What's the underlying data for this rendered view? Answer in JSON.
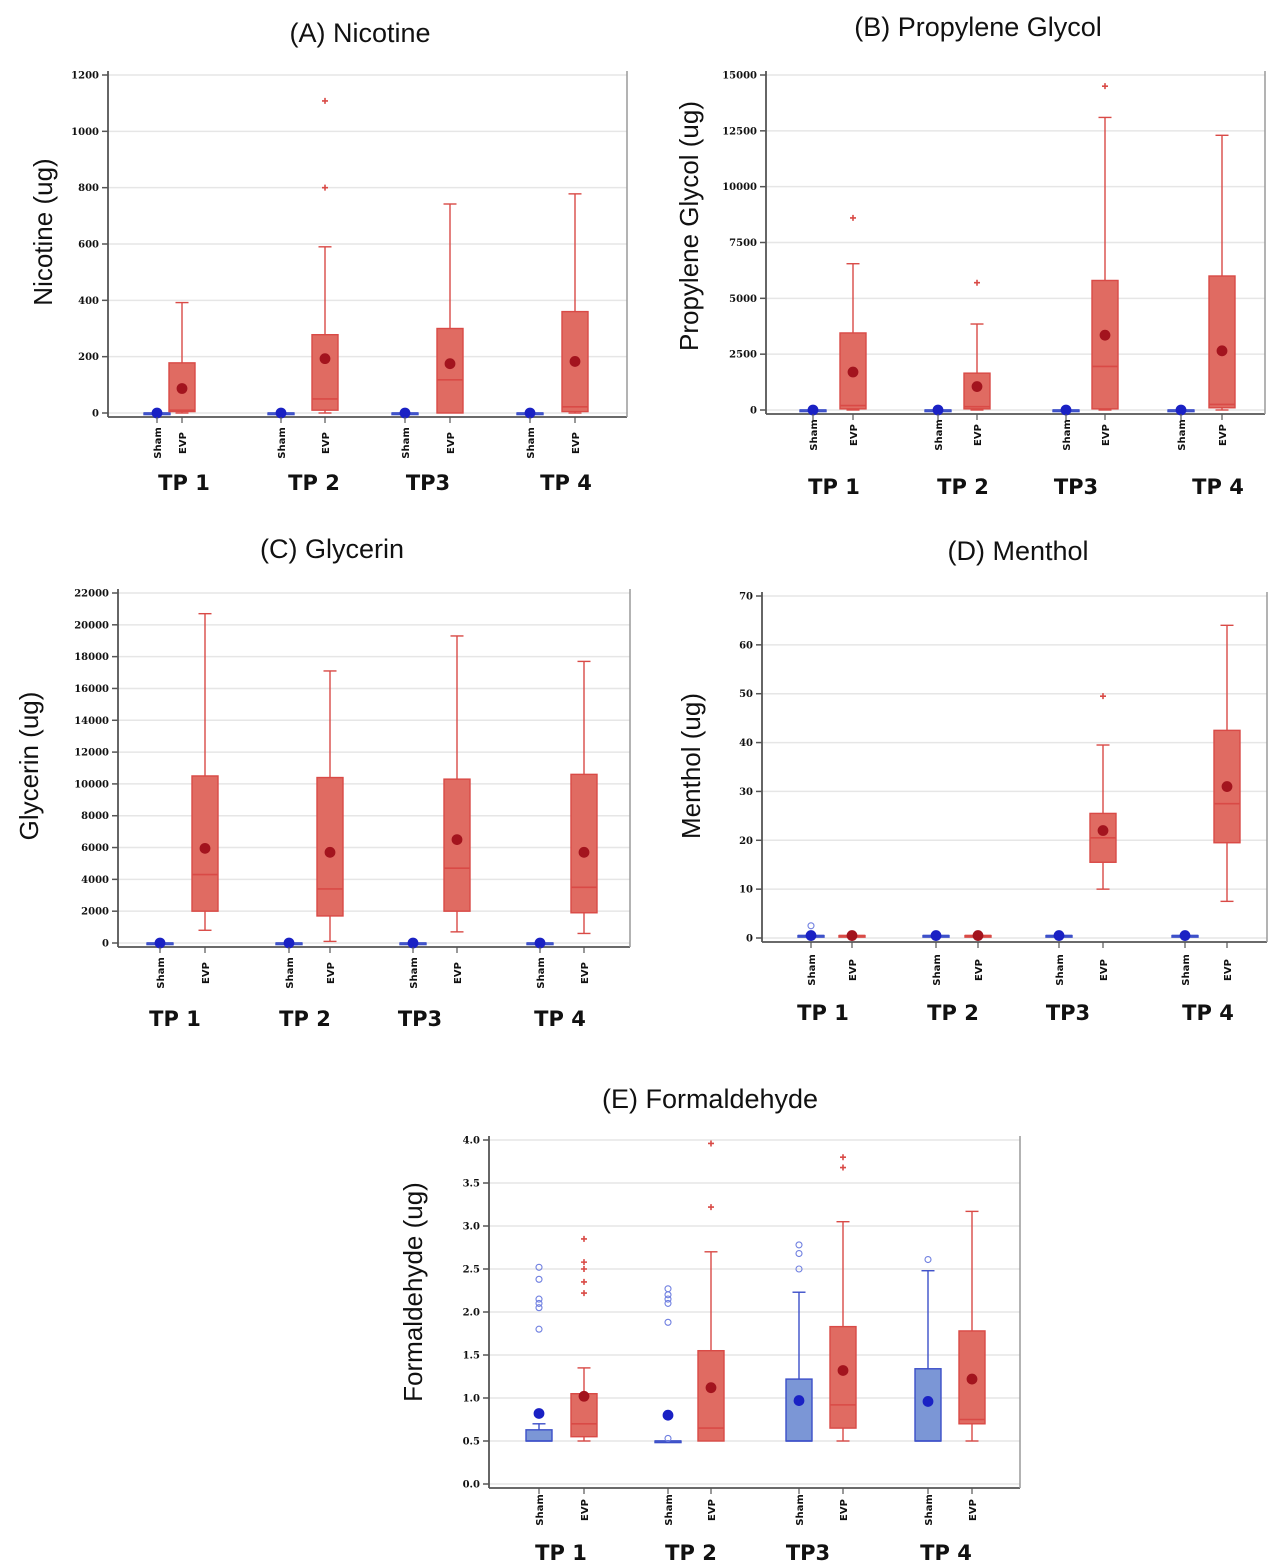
{
  "figure": {
    "panel_titles": [
      "(A) Nicotine",
      "(B) Propylene Glycol",
      "(C) Glycerin",
      "(D) Menthol",
      "(E) Formaldehyde"
    ]
  },
  "colors": {
    "sham_fill": "#7b96d6",
    "sham_line": "#3c4fc9",
    "sham_mean": "#1a21c4",
    "evp_fill": "#e06b62",
    "evp_line": "#d94a46",
    "evp_mean": "#a3141e",
    "axis": "#555555",
    "grid": "#e6e6e6"
  },
  "chart_data": [
    {
      "type": "boxplot",
      "title": "(A) Nicotine",
      "ylabel": "Nicotine (ug)",
      "ylim": [
        0,
        1200
      ],
      "yticks": [
        "0",
        "200",
        "400",
        "600",
        "800",
        "1000",
        "1200"
      ],
      "groups": [
        "TP 1",
        "TP 2",
        "TP3",
        "TP 4"
      ],
      "categories": [
        "Sham",
        "EVP"
      ],
      "grid": true,
      "boxes": [
        {
          "group": "TP 1",
          "cat": "Sham",
          "min": 0,
          "q1": 0,
          "median": 0,
          "q3": 0,
          "max": 0,
          "mean": 0,
          "outliers": []
        },
        {
          "group": "TP 1",
          "cat": "EVP",
          "min": 0,
          "q1": 5,
          "median": 10,
          "q3": 178,
          "max": 392,
          "mean": 87,
          "outliers": []
        },
        {
          "group": "TP 2",
          "cat": "Sham",
          "min": 0,
          "q1": 0,
          "median": 0,
          "q3": 0,
          "max": 0,
          "mean": 0,
          "outliers": []
        },
        {
          "group": "TP 2",
          "cat": "EVP",
          "min": 0,
          "q1": 10,
          "median": 50,
          "q3": 278,
          "max": 590,
          "mean": 193,
          "outliers": [
            800,
            1108
          ]
        },
        {
          "group": "TP3",
          "cat": "Sham",
          "min": 0,
          "q1": 0,
          "median": 0,
          "q3": 0,
          "max": 0,
          "mean": 0,
          "outliers": []
        },
        {
          "group": "TP3",
          "cat": "EVP",
          "min": 0,
          "q1": 0,
          "median": 118,
          "q3": 300,
          "max": 742,
          "mean": 175,
          "outliers": []
        },
        {
          "group": "TP 4",
          "cat": "Sham",
          "min": 0,
          "q1": 0,
          "median": 0,
          "q3": 0,
          "max": 0,
          "mean": 0,
          "outliers": []
        },
        {
          "group": "TP 4",
          "cat": "EVP",
          "min": 0,
          "q1": 5,
          "median": 22,
          "q3": 360,
          "max": 778,
          "mean": 183,
          "outliers": []
        }
      ]
    },
    {
      "type": "boxplot",
      "title": "(B) Propylene Glycol",
      "ylabel": "Propylene Glycol (ug)",
      "ylim": [
        0,
        15000
      ],
      "yticks": [
        "0",
        "2500",
        "5000",
        "7500",
        "10000",
        "12500",
        "15000"
      ],
      "groups": [
        "TP 1",
        "TP 2",
        "TP3",
        "TP 4"
      ],
      "categories": [
        "Sham",
        "EVP"
      ],
      "grid": true,
      "boxes": [
        {
          "group": "TP 1",
          "cat": "Sham",
          "min": 0,
          "q1": 0,
          "median": 0,
          "q3": 0,
          "max": 0,
          "mean": 0,
          "outliers": []
        },
        {
          "group": "TP 1",
          "cat": "EVP",
          "min": 0,
          "q1": 50,
          "median": 200,
          "q3": 3450,
          "max": 6550,
          "mean": 1700,
          "outliers": [
            8600
          ]
        },
        {
          "group": "TP 2",
          "cat": "Sham",
          "min": 0,
          "q1": 0,
          "median": 0,
          "q3": 0,
          "max": 0,
          "mean": 0,
          "outliers": []
        },
        {
          "group": "TP 2",
          "cat": "EVP",
          "min": 0,
          "q1": 50,
          "median": 150,
          "q3": 1650,
          "max": 3850,
          "mean": 1050,
          "outliers": [
            5700
          ]
        },
        {
          "group": "TP3",
          "cat": "Sham",
          "min": 0,
          "q1": 0,
          "median": 0,
          "q3": 0,
          "max": 0,
          "mean": 0,
          "outliers": []
        },
        {
          "group": "TP3",
          "cat": "EVP",
          "min": 0,
          "q1": 50,
          "median": 1950,
          "q3": 5800,
          "max": 13100,
          "mean": 3350,
          "outliers": [
            14500
          ]
        },
        {
          "group": "TP 4",
          "cat": "Sham",
          "min": 0,
          "q1": 0,
          "median": 0,
          "q3": 0,
          "max": 0,
          "mean": 0,
          "outliers": []
        },
        {
          "group": "TP 4",
          "cat": "EVP",
          "min": 0,
          "q1": 100,
          "median": 250,
          "q3": 6000,
          "max": 12300,
          "mean": 2650,
          "outliers": []
        }
      ]
    },
    {
      "type": "boxplot",
      "title": "(C) Glycerin",
      "ylabel": "Glycerin (ug)",
      "ylim": [
        0,
        22000
      ],
      "yticks": [
        "0",
        "2000",
        "4000",
        "6000",
        "8000",
        "10000",
        "12000",
        "14000",
        "16000",
        "18000",
        "20000",
        "22000"
      ],
      "groups": [
        "TP 1",
        "TP 2",
        "TP3",
        "TP 4"
      ],
      "categories": [
        "Sham",
        "EVP"
      ],
      "grid": true,
      "boxes": [
        {
          "group": "TP 1",
          "cat": "Sham",
          "min": 0,
          "q1": 0,
          "median": 0,
          "q3": 0,
          "max": 0,
          "mean": 0,
          "outliers": []
        },
        {
          "group": "TP 1",
          "cat": "EVP",
          "min": 800,
          "q1": 2000,
          "median": 4300,
          "q3": 10500,
          "max": 20700,
          "mean": 5950,
          "outliers": []
        },
        {
          "group": "TP 2",
          "cat": "Sham",
          "min": 0,
          "q1": 0,
          "median": 0,
          "q3": 0,
          "max": 0,
          "mean": 0,
          "outliers": []
        },
        {
          "group": "TP 2",
          "cat": "EVP",
          "min": 100,
          "q1": 1700,
          "median": 3400,
          "q3": 10400,
          "max": 17100,
          "mean": 5700,
          "outliers": []
        },
        {
          "group": "TP3",
          "cat": "Sham",
          "min": 0,
          "q1": 0,
          "median": 0,
          "q3": 0,
          "max": 0,
          "mean": 0,
          "outliers": []
        },
        {
          "group": "TP3",
          "cat": "EVP",
          "min": 700,
          "q1": 2000,
          "median": 4700,
          "q3": 10300,
          "max": 19300,
          "mean": 6500,
          "outliers": []
        },
        {
          "group": "TP 4",
          "cat": "Sham",
          "min": 0,
          "q1": 0,
          "median": 0,
          "q3": 0,
          "max": 0,
          "mean": 0,
          "outliers": []
        },
        {
          "group": "TP 4",
          "cat": "EVP",
          "min": 600,
          "q1": 1900,
          "median": 3500,
          "q3": 10600,
          "max": 17700,
          "mean": 5700,
          "outliers": []
        }
      ]
    },
    {
      "type": "boxplot",
      "title": "(D) Menthol",
      "ylabel": "Menthol (ug)",
      "ylim": [
        0,
        70
      ],
      "yticks": [
        "0",
        "10",
        "20",
        "30",
        "40",
        "50",
        "60",
        "70"
      ],
      "groups": [
        "TP 1",
        "TP 2",
        "TP3",
        "TP 4"
      ],
      "categories": [
        "Sham",
        "EVP"
      ],
      "grid": true,
      "boxes": [
        {
          "group": "TP 1",
          "cat": "Sham",
          "min": 0.5,
          "q1": 0.5,
          "median": 0.5,
          "q3": 0.5,
          "max": 0.5,
          "mean": 0.5,
          "outliers": [
            2.5
          ],
          "outlier_style": "circle"
        },
        {
          "group": "TP 1",
          "cat": "EVP",
          "min": 0.5,
          "q1": 0.5,
          "median": 0.5,
          "q3": 0.5,
          "max": 0.5,
          "mean": 0.5,
          "outliers": []
        },
        {
          "group": "TP 2",
          "cat": "Sham",
          "min": 0.5,
          "q1": 0.5,
          "median": 0.5,
          "q3": 0.5,
          "max": 0.5,
          "mean": 0.5,
          "outliers": []
        },
        {
          "group": "TP 2",
          "cat": "EVP",
          "min": 0.5,
          "q1": 0.5,
          "median": 0.5,
          "q3": 0.5,
          "max": 0.5,
          "mean": 0.5,
          "outliers": []
        },
        {
          "group": "TP3",
          "cat": "Sham",
          "min": 0.5,
          "q1": 0.5,
          "median": 0.5,
          "q3": 0.5,
          "max": 0.5,
          "mean": 0.5,
          "outliers": []
        },
        {
          "group": "TP3",
          "cat": "EVP",
          "min": 10,
          "q1": 15.5,
          "median": 20.5,
          "q3": 25.5,
          "max": 39.5,
          "mean": 22,
          "outliers": [
            49.5
          ]
        },
        {
          "group": "TP 4",
          "cat": "Sham",
          "min": 0.5,
          "q1": 0.5,
          "median": 0.5,
          "q3": 0.5,
          "max": 0.5,
          "mean": 0.5,
          "outliers": []
        },
        {
          "group": "TP 4",
          "cat": "EVP",
          "min": 7.5,
          "q1": 19.5,
          "median": 27.5,
          "q3": 42.5,
          "max": 64,
          "mean": 31,
          "outliers": []
        }
      ]
    },
    {
      "type": "boxplot",
      "title": "(E) Formaldehyde",
      "ylabel": "Formaldehyde (ug)",
      "ylim": [
        0,
        4.0
      ],
      "yticks": [
        "0.0",
        "0.5",
        "1.0",
        "1.5",
        "2.0",
        "2.5",
        "3.0",
        "3.5",
        "4.0"
      ],
      "groups": [
        "TP 1",
        "TP 2",
        "TP3",
        "TP 4"
      ],
      "categories": [
        "Sham",
        "EVP"
      ],
      "grid": true,
      "boxes": [
        {
          "group": "TP 1",
          "cat": "Sham",
          "min": 0.5,
          "q1": 0.5,
          "median": 0.5,
          "q3": 0.63,
          "max": 0.7,
          "mean": 0.82,
          "outliers": [
            1.8,
            2.05,
            2.1,
            2.15,
            2.38,
            2.52
          ],
          "outlier_style": "circle"
        },
        {
          "group": "TP 1",
          "cat": "EVP",
          "min": 0.5,
          "q1": 0.55,
          "median": 0.7,
          "q3": 1.05,
          "max": 1.35,
          "mean": 1.02,
          "outliers": [
            2.22,
            2.35,
            2.5,
            2.58,
            2.85
          ]
        },
        {
          "group": "TP 2",
          "cat": "Sham",
          "min": 0.5,
          "q1": 0.5,
          "median": 0.5,
          "q3": 0.5,
          "max": 0.5,
          "mean": 0.8,
          "outliers": [
            0.53,
            1.88,
            2.1,
            2.15,
            2.2,
            2.27
          ],
          "outlier_style": "circle"
        },
        {
          "group": "TP 2",
          "cat": "EVP",
          "min": 0.5,
          "q1": 0.5,
          "median": 0.65,
          "q3": 1.55,
          "max": 2.7,
          "mean": 1.12,
          "outliers": [
            3.22,
            3.96
          ]
        },
        {
          "group": "TP3",
          "cat": "Sham",
          "min": 0.5,
          "q1": 0.5,
          "median": 0.5,
          "q3": 1.22,
          "max": 2.23,
          "mean": 0.97,
          "outliers": [
            2.5,
            2.68,
            2.78
          ],
          "outlier_style": "circle"
        },
        {
          "group": "TP3",
          "cat": "EVP",
          "min": 0.5,
          "q1": 0.65,
          "median": 0.92,
          "q3": 1.83,
          "max": 3.05,
          "mean": 1.32,
          "outliers": [
            3.68,
            3.8
          ]
        },
        {
          "group": "TP 4",
          "cat": "Sham",
          "min": 0.5,
          "q1": 0.5,
          "median": 0.5,
          "q3": 1.34,
          "max": 2.48,
          "mean": 0.96,
          "outliers": [
            2.61
          ],
          "outlier_style": "circle"
        },
        {
          "group": "TP 4",
          "cat": "EVP",
          "min": 0.5,
          "q1": 0.7,
          "median": 0.75,
          "q3": 1.78,
          "max": 3.17,
          "mean": 1.22,
          "outliers": []
        }
      ]
    }
  ]
}
